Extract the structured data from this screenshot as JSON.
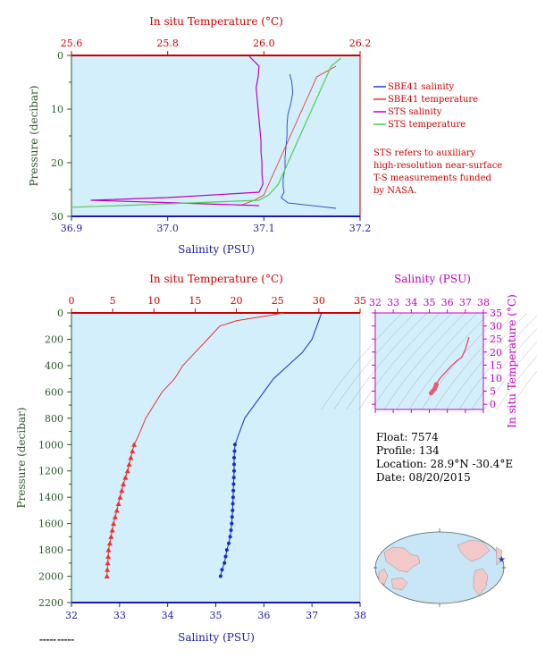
{
  "colors": {
    "bg": "#d2effb",
    "red": "#cc0000",
    "blue": "#1a1aa8",
    "olive": "#2a5a2a",
    "magenta": "#c000c0",
    "green": "#55cc55",
    "sbe_sal": "#2244cc",
    "sbe_temp": "#ee3333"
  },
  "top": {
    "temp_axis_title": "In situ Temperature (°C)",
    "sal_axis_title": "Salinity (PSU)",
    "pres_axis_title": "Pressure (decibar)",
    "temp_ticks": [
      "25.6",
      "25.8",
      "26.0",
      "26.2"
    ],
    "sal_ticks": [
      "36.9",
      "37.0",
      "37.1",
      "37.2"
    ],
    "pres_ticks": [
      "0",
      "10",
      "20",
      "30"
    ],
    "legend": [
      "SBE41 salinity",
      "SBE41 temperature",
      "STS salinity",
      "STS temperature"
    ],
    "note": [
      "STS refers to auxiliary",
      "high-resolution near-surface",
      "T-S measurements funded",
      "by NASA."
    ]
  },
  "bottom": {
    "temp_axis_title": "In situ Temperature (°C)",
    "sal_axis_title": "Salinity (PSU)",
    "pres_axis_title": "Pressure (decibar)",
    "temp_ticks": [
      "0",
      "5",
      "10",
      "15",
      "20",
      "25",
      "30",
      "35"
    ],
    "sal_ticks": [
      "32",
      "33",
      "34",
      "35",
      "36",
      "37",
      "38"
    ],
    "pres_ticks": [
      "0",
      "200",
      "400",
      "600",
      "800",
      "1000",
      "1200",
      "1400",
      "1600",
      "1800",
      "2000",
      "2200"
    ]
  },
  "ts": {
    "sal_axis_title": "Salinity (PSU)",
    "temp_axis_title": "In situ Temperature (°C)",
    "sal_ticks": [
      "32",
      "33",
      "34",
      "35",
      "36",
      "37",
      "38"
    ],
    "temp_ticks": [
      "0",
      "5",
      "10",
      "15",
      "20",
      "25",
      "30",
      "35"
    ]
  },
  "info": {
    "float": "Float:  7574",
    "profile": "Profile:  134",
    "location": "Location:  28.9°N  -30.4°E",
    "date": "Date:  08/20/2015"
  },
  "chart_data": [
    {
      "type": "line",
      "title": "",
      "xlabel_bottom": "Salinity (PSU)",
      "xlabel_top": "In situ Temperature (°C)",
      "ylabel": "Pressure (decibar)",
      "xlim_salinity": [
        36.9,
        37.2
      ],
      "xlim_temperature": [
        25.6,
        26.2
      ],
      "ylim": [
        30,
        0
      ],
      "series": [
        {
          "name": "SBE41 salinity",
          "x": [
            37.127,
            37.129,
            37.13,
            37.128,
            37.125,
            37.124,
            37.124,
            37.123,
            37.122,
            37.122,
            37.12,
            37.12,
            37.121,
            37.118,
            37.125,
            37.16,
            37.175
          ],
          "y": [
            3.5,
            5,
            7,
            9,
            11,
            13,
            15,
            17,
            19,
            21,
            23,
            24.5,
            25.5,
            26.5,
            27.5,
            28.2,
            28.5
          ]
        },
        {
          "name": "SBE41 temperature",
          "x": [
            26.15,
            26.11,
            26.1,
            26.09,
            26.08,
            26.07,
            26.06,
            26.05,
            26.04,
            26.03,
            26.02,
            26.01,
            26.0,
            25.98,
            25.95
          ],
          "y": [
            2,
            4,
            6,
            8,
            10,
            12,
            14,
            16,
            18,
            20,
            22,
            24,
            26,
            27,
            28
          ]
        },
        {
          "name": "STS salinity",
          "x": [
            37.085,
            37.095,
            37.094,
            37.092,
            37.093,
            37.094,
            37.095,
            37.096,
            37.097,
            37.097,
            37.098,
            37.098,
            37.099,
            37.095,
            37.0,
            36.92,
            37.01,
            37.095
          ],
          "y": [
            0.2,
            2,
            4,
            6,
            8,
            10,
            12,
            14,
            16,
            18,
            20,
            22,
            24,
            25.5,
            26.5,
            27.0,
            27.5,
            28.0
          ]
        },
        {
          "name": "STS temperature",
          "x": [
            26.16,
            26.14,
            26.13,
            26.12,
            26.11,
            26.1,
            26.09,
            26.08,
            26.07,
            26.06,
            26.05,
            26.04,
            26.03,
            26.01,
            25.99,
            25.7,
            25.6
          ],
          "y": [
            0.5,
            2,
            4,
            6,
            8,
            10,
            12,
            14,
            16,
            18,
            20,
            22,
            24,
            26,
            27,
            28,
            28.3
          ]
        }
      ]
    },
    {
      "type": "line",
      "title": "",
      "xlabel_bottom": "Salinity (PSU)",
      "xlabel_top": "In situ Temperature (°C)",
      "ylabel": "Pressure (decibar)",
      "xlim_salinity": [
        32,
        38
      ],
      "xlim_temperature": [
        0,
        35
      ],
      "ylim": [
        2200,
        0
      ],
      "series": [
        {
          "name": "Salinity",
          "x": [
            37.2,
            37.15,
            37.1,
            37.0,
            36.8,
            36.5,
            36.2,
            36.0,
            35.8,
            35.6,
            35.5,
            35.4,
            35.38,
            35.38,
            35.37,
            35.36,
            35.35,
            35.33,
            35.3,
            35.27,
            35.23,
            35.18,
            35.13,
            35.1
          ],
          "y": [
            0,
            50,
            100,
            200,
            300,
            400,
            500,
            600,
            700,
            800,
            900,
            1000,
            1100,
            1200,
            1300,
            1400,
            1500,
            1600,
            1700,
            1750,
            1800,
            1900,
            1950,
            2000
          ]
        },
        {
          "name": "Temperature",
          "x": [
            25.7,
            24,
            20,
            18,
            16.5,
            15,
            13.5,
            12.5,
            11,
            10,
            9,
            8,
            7.6,
            7.2,
            6.8,
            6.3,
            5.9,
            5.5,
            5.1,
            4.8,
            4.5,
            4.3
          ],
          "y": [
            0,
            20,
            60,
            100,
            200,
            300,
            400,
            500,
            600,
            700,
            800,
            950,
            1000,
            1100,
            1200,
            1300,
            1400,
            1500,
            1600,
            1700,
            1800,
            2000
          ]
        }
      ]
    },
    {
      "type": "line",
      "title": "",
      "xlabel": "Salinity (PSU)",
      "ylabel": "In situ Temperature (°C)",
      "xlim": [
        32,
        38
      ],
      "ylim": [
        -2,
        35
      ],
      "series": [
        {
          "name": "T-S",
          "x": [
            37.2,
            37.0,
            36.8,
            36.5,
            36.2,
            36.0,
            35.8,
            35.6,
            35.5,
            35.4,
            35.38,
            35.35,
            35.3,
            35.2,
            35.1
          ],
          "y": [
            25.7,
            21,
            18,
            16.5,
            14.5,
            13,
            11.5,
            10,
            9,
            8,
            7.6,
            6.8,
            5.9,
            5.1,
            4.3
          ]
        }
      ]
    }
  ]
}
